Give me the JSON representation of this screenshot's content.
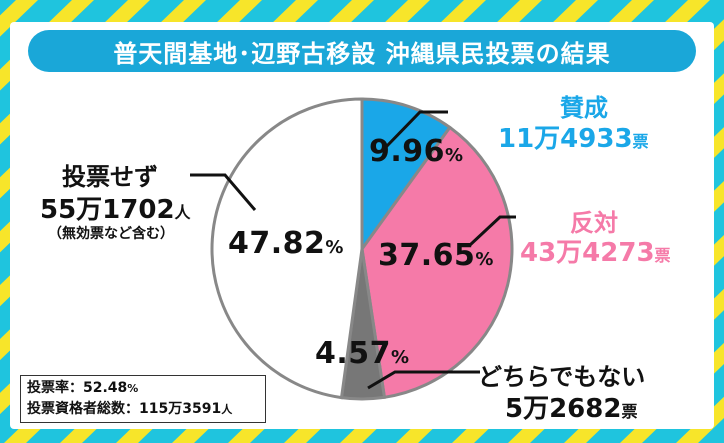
{
  "title": "普天間基地･辺野古移設 沖縄県民投票の結果",
  "colors": {
    "background": "#1fc4de",
    "stripe": "#f7e52a",
    "title_bg": "#1aa7d8",
    "yes": "#1aa7e8",
    "no": "#f57aa8",
    "neither": "#777777",
    "abstain": "#ffffff"
  },
  "chart_data": {
    "type": "pie",
    "slices": [
      {
        "name": "賛成",
        "percent": 9.96,
        "pct_text": "9.96",
        "count_main": "11万4933",
        "count_unit": "票"
      },
      {
        "name": "反対",
        "percent": 37.65,
        "pct_text": "37.65",
        "count_main": "43万4273",
        "count_unit": "票"
      },
      {
        "name": "どちらでもない",
        "percent": 4.57,
        "pct_text": "4.57",
        "count_main": "5万2682",
        "count_unit": "票"
      },
      {
        "name": "投票せず",
        "percent": 47.82,
        "pct_text": "47.82",
        "count_main": "55万1702",
        "count_unit": "人",
        "note": "（無効票など含む）"
      }
    ],
    "percent_unit": "%"
  },
  "stats": {
    "turnout_label": "投票率：",
    "turnout_value": "52.48",
    "turnout_unit": "%",
    "eligible_label": "投票資格者総数：",
    "eligible_value": "115万3591",
    "eligible_unit": "人"
  }
}
